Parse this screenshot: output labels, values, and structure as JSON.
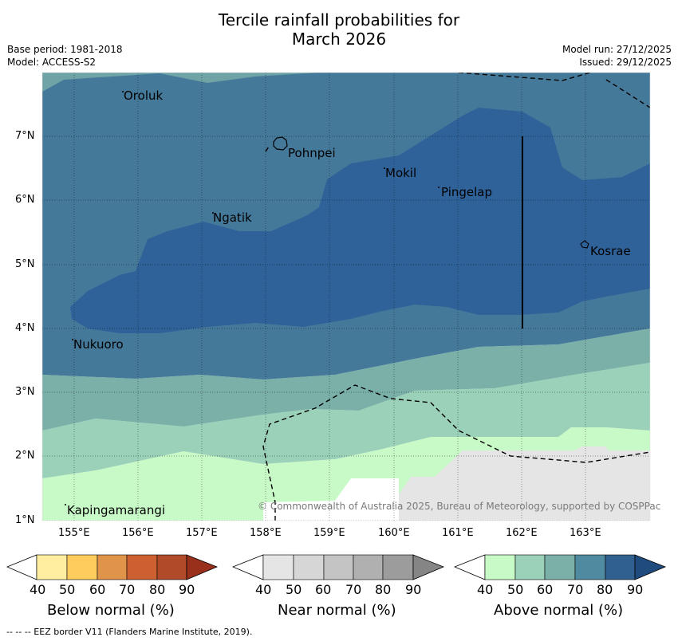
{
  "title": {
    "line1": "Tercile rainfall probabilities for",
    "line2": "March 2026"
  },
  "meta": {
    "base_period": "Base period: 1981-2018",
    "model": "Model: ACCESS-S2",
    "model_run": "Model run: 27/12/2025",
    "issued": "Issued: 29/12/2025"
  },
  "map": {
    "lon_ticks": [
      "155°E",
      "156°E",
      "157°E",
      "158°E",
      "159°E",
      "160°E",
      "161°E",
      "162°E",
      "163°E"
    ],
    "lat_ticks": [
      "7°N",
      "6°N",
      "5°N",
      "4°N",
      "3°N",
      "2°N",
      "1°N"
    ],
    "places": [
      {
        "name": "Oroluk"
      },
      {
        "name": "Pohnpei"
      },
      {
        "name": "Mokil"
      },
      {
        "name": "Pingelap"
      },
      {
        "name": "Ngatik"
      },
      {
        "name": "Kosrae"
      },
      {
        "name": "Nukuoro"
      },
      {
        "name": "Kapingamarangi"
      }
    ],
    "credit": "© Commonwealth of Australia 2025, Bureau of Meteorology, supported by COSPPac"
  },
  "colorbars": [
    {
      "label": "Below normal (%)",
      "ticks": [
        "40",
        "50",
        "60",
        "70",
        "80",
        "90"
      ],
      "colors": [
        "#ffffff",
        "#ffeda0",
        "#fecc5c",
        "#e0944a",
        "#cc6030",
        "#b04a28",
        "#99301c"
      ]
    },
    {
      "label": "Near normal (%)",
      "ticks": [
        "40",
        "50",
        "60",
        "70",
        "80",
        "90"
      ],
      "colors": [
        "#ffffff",
        "#e5e5e5",
        "#d6d6d6",
        "#c4c4c4",
        "#b0b0b0",
        "#9c9c9c",
        "#858585"
      ]
    },
    {
      "label": "Above normal (%)",
      "ticks": [
        "40",
        "50",
        "60",
        "70",
        "80",
        "90"
      ],
      "colors": [
        "#ffffff",
        "#c8fac8",
        "#9bd1b8",
        "#7ab0a8",
        "#4f8aa0",
        "#30608f",
        "#1f4b7f"
      ]
    }
  ],
  "footer": "--  --  -- EEZ border V11 (Flanders Marine Institute, 2019)."
}
